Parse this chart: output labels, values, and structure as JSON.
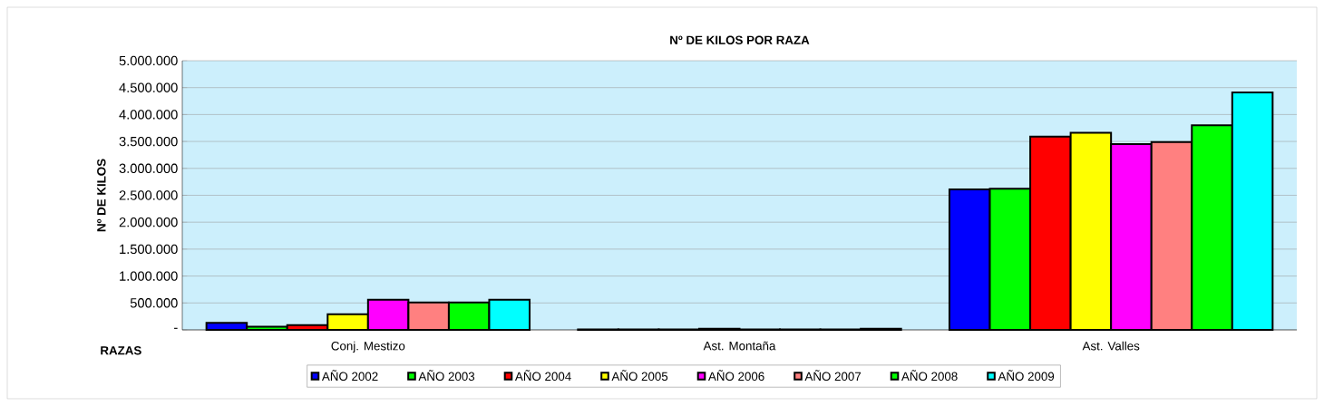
{
  "chart_data": {
    "type": "bar",
    "title": "Nº DE KILOS POR RAZA",
    "xlabel": "RAZAS",
    "ylabel": "Nº DE KILOS",
    "categories": [
      "Conj. Mestizo",
      "Ast. Montaña",
      "Ast. Valles"
    ],
    "series": [
      {
        "name": "AÑO 2002",
        "color": "#0000ff",
        "values": [
          130000,
          10000,
          2610000
        ]
      },
      {
        "name": "AÑO 2003",
        "color": "#00ff00",
        "values": [
          60000,
          10000,
          2620000
        ]
      },
      {
        "name": "AÑO 2004",
        "color": "#ff0000",
        "values": [
          90000,
          10000,
          3590000
        ]
      },
      {
        "name": "AÑO 2005",
        "color": "#ffff00",
        "values": [
          290000,
          20000,
          3660000
        ]
      },
      {
        "name": "AÑO 2006",
        "color": "#ff00ff",
        "values": [
          560000,
          10000,
          3450000
        ]
      },
      {
        "name": "AÑO 2007",
        "color": "#ff8080",
        "values": [
          510000,
          10000,
          3490000
        ]
      },
      {
        "name": "AÑO 2008",
        "color": "#00ff00",
        "values": [
          510000,
          10000,
          3800000
        ]
      },
      {
        "name": "AÑO 2009",
        "color": "#00ffff",
        "values": [
          560000,
          20000,
          4410000
        ]
      }
    ],
    "ylim": [
      0,
      5000000
    ],
    "yticks": [
      {
        "value": 0,
        "label": "-"
      },
      {
        "value": 500000,
        "label": "500.000"
      },
      {
        "value": 1000000,
        "label": "1.000.000"
      },
      {
        "value": 1500000,
        "label": "1.500.000"
      },
      {
        "value": 2000000,
        "label": "2.000.000"
      },
      {
        "value": 2500000,
        "label": "2.500.000"
      },
      {
        "value": 3000000,
        "label": "3.000.000"
      },
      {
        "value": 3500000,
        "label": "3.500.000"
      },
      {
        "value": 4000000,
        "label": "4.000.000"
      },
      {
        "value": 4500000,
        "label": "4.500.000"
      },
      {
        "value": 5000000,
        "label": "5.000.000"
      }
    ],
    "grid": "y",
    "legend": "bottom"
  }
}
